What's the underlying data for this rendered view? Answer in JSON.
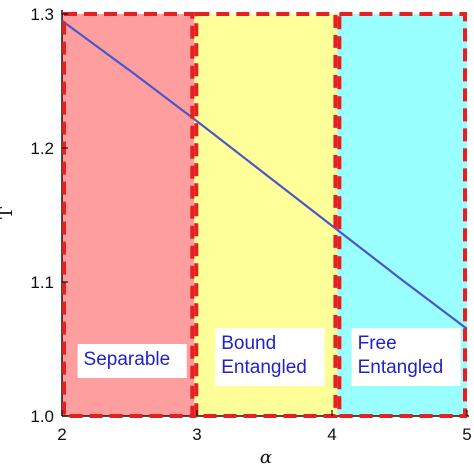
{
  "chart_data": {
    "type": "line",
    "xlabel": "α",
    "ylabel": "T",
    "xlim": [
      2,
      5
    ],
    "ylim": [
      1.0,
      1.3
    ],
    "x_ticks": [
      "2",
      "3",
      "4",
      "5"
    ],
    "y_ticks": [
      "1.0",
      "1.1",
      "1.2",
      "1.3"
    ],
    "series": [
      {
        "x": [
          2.0,
          2.5,
          3.0,
          3.5,
          4.0,
          4.5,
          5.0
        ],
        "y": [
          1.295,
          1.258,
          1.22,
          1.181,
          1.142,
          1.103,
          1.065
        ],
        "color": "#4b57c9"
      }
    ],
    "regions": [
      {
        "label": "Separable",
        "x_start": 2.0,
        "x_end": 2.98,
        "fill": "#ff9e9e"
      },
      {
        "label": "Bound Entangled",
        "label_lines": [
          "Bound",
          "Entangled"
        ],
        "x_start": 2.98,
        "x_end": 4.04,
        "fill": "#ffff99"
      },
      {
        "label": "Free Entangled",
        "label_lines": [
          "Free",
          "Entangled"
        ],
        "x_start": 4.04,
        "x_end": 5.0,
        "fill": "#99ffff"
      }
    ],
    "region_border_color": "#e42020",
    "label_text_color": "#2222cc",
    "grid": false
  }
}
